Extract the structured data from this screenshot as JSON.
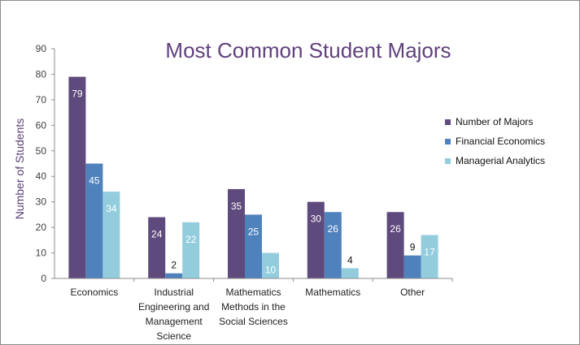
{
  "chart_data": {
    "type": "bar",
    "title": "Most Common Student Majors",
    "xlabel": "",
    "ylabel": "Number of Students",
    "ylim": [
      0,
      90
    ],
    "yticks": [
      0,
      10,
      20,
      30,
      40,
      50,
      60,
      70,
      80,
      90
    ],
    "grid": false,
    "legend_position": "right",
    "categories": [
      [
        "Economics"
      ],
      [
        "Industrial",
        "Engineering and",
        "Management",
        "Science"
      ],
      [
        "Mathematics",
        "Methods in the",
        "Social Sciences"
      ],
      [
        "Mathematics"
      ],
      [
        "Other"
      ]
    ],
    "series": [
      {
        "name": "Number of Majors",
        "color": "#5f4a7d",
        "values": [
          79,
          24,
          35,
          30,
          26
        ]
      },
      {
        "name": "Financial Economics",
        "color": "#4f81bd",
        "values": [
          45,
          2,
          25,
          26,
          9
        ]
      },
      {
        "name": "Managerial Analytics",
        "color": "#93cddd",
        "values": [
          34,
          22,
          10,
          4,
          17
        ]
      }
    ],
    "data_labels": [
      [
        "79",
        "45",
        "34"
      ],
      [
        "24",
        "2",
        "22"
      ],
      [
        "35",
        "25",
        "10"
      ],
      [
        "30",
        "26",
        "4"
      ],
      [
        "26",
        "9",
        "17"
      ]
    ]
  }
}
